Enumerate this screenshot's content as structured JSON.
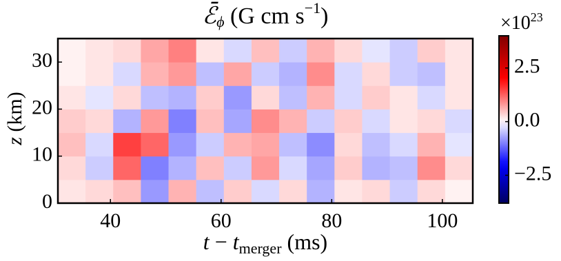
{
  "chart_data": {
    "type": "heatmap",
    "title_parts": [
      "ℰ̄",
      "ϕ",
      " (G cm s",
      "−1",
      ")"
    ],
    "xlabel_parts": [
      "t",
      " − ",
      "t",
      "merger",
      " (ms)"
    ],
    "ylabel_parts": [
      "z",
      " (km)"
    ],
    "x_edges": [
      30.5,
      35.5,
      40.5,
      45.5,
      50.5,
      55.5,
      60.5,
      65.5,
      70.5,
      75.5,
      80.5,
      85.5,
      90.5,
      95.5,
      100.5,
      105.5
    ],
    "y_edges": [
      0,
      5,
      10,
      15,
      20,
      25,
      30,
      35
    ],
    "values": [
      [
        0.2,
        0.3,
        0.5,
        -0.8,
        0.6,
        -0.5,
        0.4,
        -0.3,
        0.3,
        -0.6,
        0.2,
        0.3,
        -0.4,
        0.3,
        0.1
      ],
      [
        0.3,
        -0.4,
        1.2,
        -1.0,
        -0.6,
        0.5,
        -0.4,
        0.8,
        -0.3,
        -0.7,
        0.4,
        -0.6,
        -0.5,
        0.9,
        0.3
      ],
      [
        0.5,
        -0.3,
        1.5,
        1.2,
        -0.8,
        -0.4,
        0.6,
        0.7,
        -0.5,
        -0.9,
        0.3,
        -0.5,
        -0.3,
        0.6,
        -0.2
      ],
      [
        0.4,
        0.3,
        -0.6,
        0.8,
        -1.0,
        0.5,
        -0.7,
        0.9,
        0.6,
        -0.4,
        0.4,
        -0.3,
        0.2,
        0.3,
        -0.3
      ],
      [
        0.2,
        -0.2,
        0.3,
        -0.5,
        -0.6,
        0.4,
        -0.8,
        0.3,
        -0.5,
        0.6,
        -0.3,
        0.4,
        0.2,
        -0.3,
        0.2
      ],
      [
        0.1,
        0.2,
        -0.3,
        0.6,
        0.8,
        -0.5,
        0.7,
        -0.4,
        -0.6,
        0.9,
        -0.3,
        0.3,
        -0.4,
        -0.5,
        0.2
      ],
      [
        0.1,
        0.2,
        0.3,
        0.7,
        1.0,
        0.2,
        -0.3,
        0.5,
        -0.4,
        0.6,
        0.3,
        -0.2,
        -0.4,
        0.4,
        0.2
      ]
    ],
    "xlim": [
      30.5,
      105.5
    ],
    "xticks": [
      40,
      60,
      80,
      100
    ],
    "ylim": [
      0,
      35
    ],
    "yticks": [
      0,
      10,
      20,
      30
    ],
    "colormap": "seismic",
    "clim": [
      -3.8,
      4.0
    ],
    "cticks": [
      {
        "value": -2.5,
        "label": "−2.5"
      },
      {
        "value": 0,
        "label": "0.0"
      },
      2.5
    ],
    "colorbar_offset": [
      "×10",
      "23"
    ]
  }
}
